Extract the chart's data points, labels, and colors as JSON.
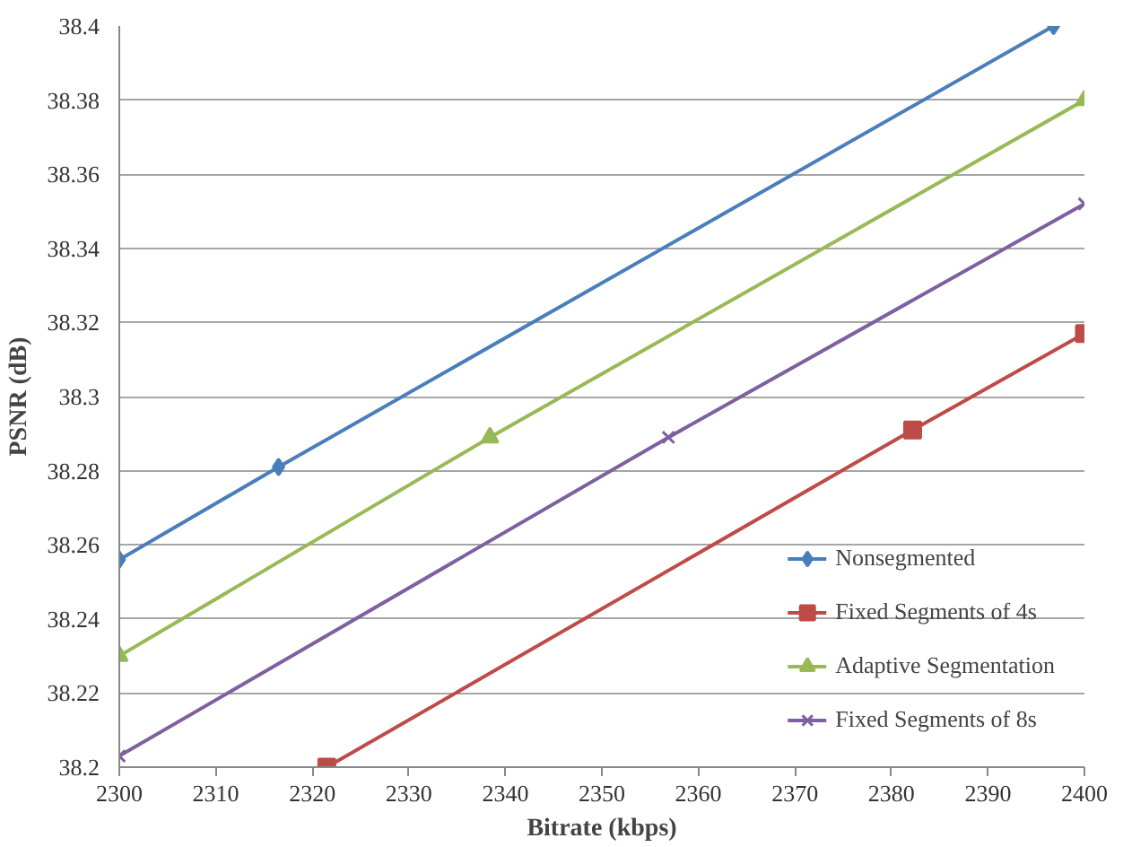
{
  "chart_data": {
    "type": "line",
    "xlabel": "Bitrate (kbps)",
    "ylabel": "PSNR (dB)",
    "xlim": [
      2300,
      2400
    ],
    "ylim": [
      38.2,
      38.4
    ],
    "xticks": [
      2300,
      2310,
      2320,
      2330,
      2340,
      2350,
      2360,
      2370,
      2380,
      2390,
      2400
    ],
    "yticks": [
      38.2,
      38.22,
      38.24,
      38.26,
      38.28,
      38.3,
      38.32,
      38.34,
      38.36,
      38.38,
      38.4
    ],
    "grid": "y",
    "legend": "bottom right",
    "line_style": "solid",
    "series": [
      {
        "name": "Nonsegmented",
        "color": "#4a7ebb",
        "marker": "diamond",
        "x": [
          2300,
          2316.5,
          2396.8
        ],
        "values": [
          38.256,
          38.281,
          38.4
        ]
      },
      {
        "name": "Fixed Segments of 4s",
        "color": "#be4b48",
        "marker": "square",
        "x": [
          2321.5,
          2382.2,
          2400
        ],
        "values": [
          38.2,
          38.291,
          38.317
        ]
      },
      {
        "name": "Adaptive Segmentation",
        "color": "#98b954",
        "marker": "triangle",
        "x": [
          2300,
          2338.4,
          2400
        ],
        "values": [
          38.23,
          38.289,
          38.38
        ]
      },
      {
        "name": "Fixed Segments of 8s",
        "color": "#7d60a0",
        "marker": "cross",
        "x": [
          2300,
          2356.9,
          2400
        ],
        "values": [
          38.203,
          38.289,
          38.352
        ]
      }
    ]
  }
}
